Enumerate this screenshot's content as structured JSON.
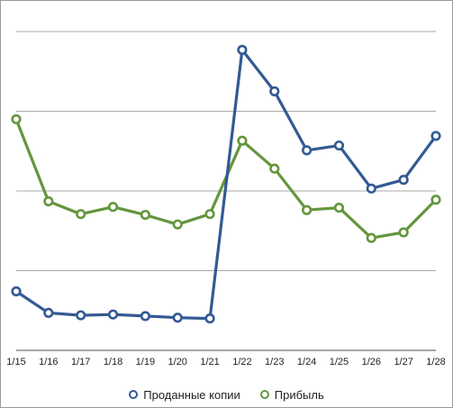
{
  "chart_data": {
    "type": "line",
    "title": "",
    "xlabel": "",
    "ylabel": "",
    "categories": [
      "1/15",
      "1/16",
      "1/17",
      "1/18",
      "1/19",
      "1/20",
      "1/21",
      "1/22",
      "1/23",
      "1/24",
      "1/25",
      "1/26",
      "1/27",
      "1/28"
    ],
    "ylim": [
      0,
      4
    ],
    "grid": true,
    "legend_position": "bottom",
    "series": [
      {
        "name": "Проданные копии",
        "color": "#335a93",
        "values": [
          0.74,
          0.47,
          0.44,
          0.45,
          0.43,
          0.41,
          0.4,
          3.77,
          3.25,
          2.51,
          2.57,
          2.03,
          2.14,
          2.69
        ]
      },
      {
        "name": "Прибыль",
        "color": "#64963d",
        "values": [
          2.9,
          1.87,
          1.71,
          1.8,
          1.7,
          1.58,
          1.71,
          2.63,
          2.28,
          1.76,
          1.79,
          1.41,
          1.48,
          1.89
        ]
      }
    ]
  }
}
